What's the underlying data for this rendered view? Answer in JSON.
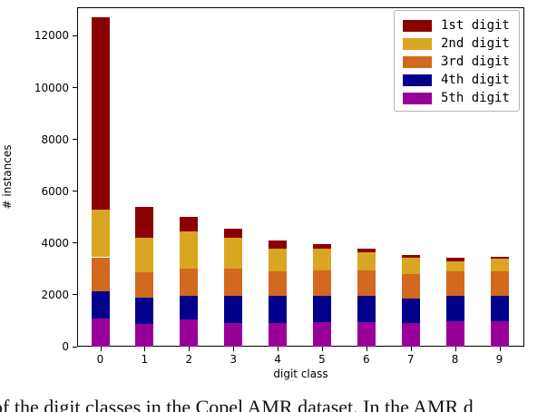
{
  "chart_data": {
    "type": "bar",
    "stacked": true,
    "title": "",
    "xlabel": "digit class",
    "ylabel": "# instances",
    "categories": [
      "0",
      "1",
      "2",
      "3",
      "4",
      "5",
      "6",
      "7",
      "8",
      "9"
    ],
    "series": [
      {
        "name": "1st digit",
        "color": "#8b0000",
        "values": [
          7400,
          1200,
          550,
          350,
          300,
          180,
          150,
          130,
          120,
          80
        ]
      },
      {
        "name": "2nd digit",
        "color": "#daa520",
        "values": [
          1850,
          1330,
          1450,
          1200,
          900,
          840,
          700,
          620,
          400,
          500
        ]
      },
      {
        "name": "3rd digit",
        "color": "#d2691e",
        "values": [
          1300,
          970,
          1040,
          1050,
          950,
          980,
          1000,
          950,
          950,
          950
        ]
      },
      {
        "name": "4th digit",
        "color": "#00008b",
        "values": [
          1050,
          1010,
          910,
          1040,
          1040,
          1020,
          1020,
          950,
          980,
          960
        ]
      },
      {
        "name": "5th digit",
        "color": "#990099",
        "values": [
          1100,
          890,
          1050,
          910,
          910,
          930,
          930,
          900,
          970,
          990
        ]
      }
    ],
    "stack_order_note": "bottom to top: 5th digit, 4th digit, 3rd digit, 2nd digit, 1st digit",
    "totals": [
      12700,
      5400,
      5000,
      4550,
      4100,
      3950,
      3800,
      3550,
      3420,
      3480
    ],
    "yticks": [
      0,
      2000,
      4000,
      6000,
      8000,
      10000,
      12000
    ],
    "ylim": [
      0,
      13100
    ],
    "grid": false,
    "legend_position": "upper right"
  },
  "caption": {
    "text": "of the digit classes in the Copel AMR dataset. In the AMR d"
  }
}
